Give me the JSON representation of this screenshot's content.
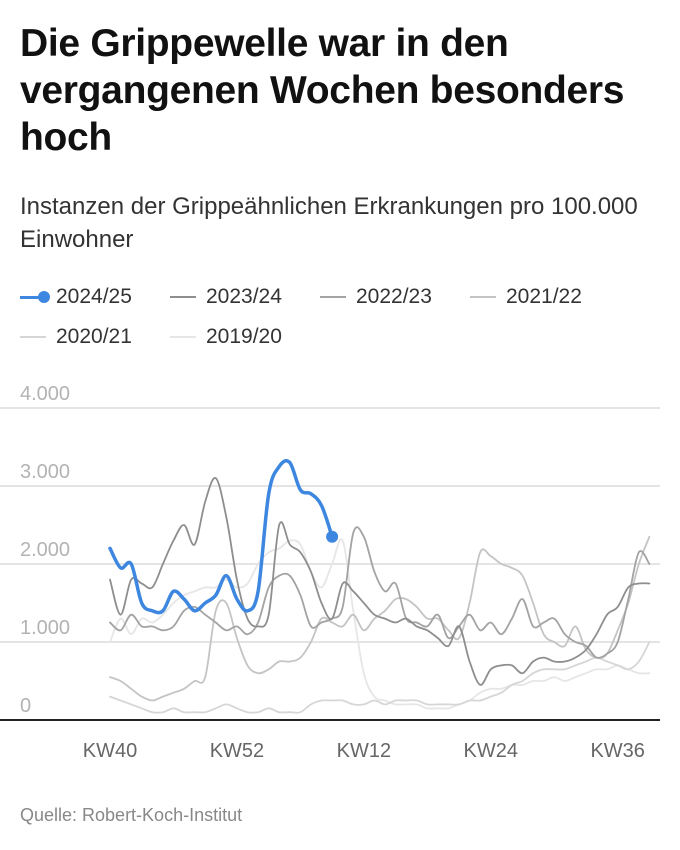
{
  "header": {
    "title": "Die Grippewelle war in den vergangenen Wochen besonders hoch",
    "subtitle": "Instanzen der Grippeähnlichen Erkrankungen pro 100.000 Einwohner"
  },
  "source": "Quelle: Robert-Koch-Institut",
  "chart_data": {
    "type": "line",
    "title": "Die Grippewelle war in den vergangenen Wochen besonders hoch",
    "subtitle": "Instanzen der Grippeähnlichen Erkrankungen pro 100.000 Einwohner",
    "xlabel": "",
    "ylabel": "",
    "x_ticks": [
      {
        "label": "KW40",
        "index": 0
      },
      {
        "label": "KW52",
        "index": 12
      },
      {
        "label": "KW12",
        "index": 24
      },
      {
        "label": "KW24",
        "index": 36
      },
      {
        "label": "KW36",
        "index": 48
      }
    ],
    "y_ticks": [
      {
        "value": 0,
        "label": "0"
      },
      {
        "value": 1000,
        "label": "1.000"
      },
      {
        "value": 2000,
        "label": "2.000"
      },
      {
        "value": 3000,
        "label": "3.000"
      },
      {
        "value": 4000,
        "label": "4.000"
      }
    ],
    "ylim": [
      0,
      4000
    ],
    "xlim": [
      0,
      52
    ],
    "grid": true,
    "legend_position": "top",
    "series": [
      {
        "name": "2024/25",
        "color": "#3d87e0",
        "highlight": true,
        "values": [
          2200,
          1950,
          2000,
          1500,
          1400,
          1400,
          1650,
          1550,
          1400,
          1500,
          1600,
          1850,
          1550,
          1400,
          1650,
          2900,
          3250,
          3300,
          2950,
          2900,
          2750,
          2350
        ]
      },
      {
        "name": "2023/24",
        "color": "#8e8e8e",
        "values": [
          1800,
          1350,
          1800,
          1750,
          1700,
          2000,
          2300,
          2500,
          2250,
          2800,
          3100,
          2600,
          1800,
          1300,
          1200,
          1350,
          2500,
          2250,
          2150,
          1900,
          1500,
          1300,
          1750,
          1650,
          1500,
          1350,
          1300,
          1250,
          1300,
          1200,
          1150,
          1050,
          950,
          1200,
          750,
          450,
          650,
          700,
          700,
          600,
          750,
          800,
          750,
          750,
          800,
          900,
          1100,
          1350,
          1450,
          1700,
          1750,
          1750
        ]
      },
      {
        "name": "2022/23",
        "color": "#a3a3a3",
        "values": [
          1250,
          1150,
          1350,
          1200,
          1200,
          1150,
          1200,
          1400,
          1450,
          1350,
          1250,
          1150,
          1200,
          1100,
          1250,
          1700,
          1850,
          1850,
          1600,
          1200,
          1250,
          1300,
          1450,
          2400,
          2350,
          1900,
          1650,
          1750,
          1300,
          1250,
          1200,
          1350,
          1050,
          1200,
          1350,
          1150,
          1250,
          1100,
          1300,
          1550,
          1200,
          1250,
          1300,
          1100,
          1000,
          950,
          800,
          850,
          1000,
          1550,
          2150,
          2000
        ]
      },
      {
        "name": "2021/22",
        "color": "#c4c4c4",
        "values": [
          550,
          500,
          400,
          300,
          250,
          300,
          350,
          400,
          500,
          550,
          1400,
          1500,
          1050,
          700,
          600,
          650,
          750,
          750,
          800,
          1000,
          1300,
          1250,
          1200,
          1350,
          1150,
          1300,
          1400,
          1550,
          1550,
          1450,
          1300,
          1300,
          1150,
          1050,
          1500,
          2150,
          2100,
          2000,
          1950,
          1850,
          1500,
          1100,
          1000,
          950,
          1200,
          900,
          800,
          850,
          1150,
          1500,
          2000,
          2350
        ]
      },
      {
        "name": "2020/21",
        "color": "#d6d6d6",
        "values": [
          300,
          250,
          200,
          150,
          100,
          100,
          150,
          100,
          100,
          100,
          150,
          200,
          150,
          100,
          100,
          150,
          100,
          100,
          100,
          200,
          250,
          250,
          250,
          200,
          200,
          250,
          200,
          250,
          250,
          250,
          200,
          200,
          200,
          200,
          250,
          250,
          300,
          350,
          450,
          500,
          600,
          650,
          650,
          650,
          700,
          750,
          800,
          750,
          700,
          650,
          750,
          1000
        ]
      },
      {
        "name": "2019/20",
        "color": "#e6e6e6",
        "values": [
          1000,
          1300,
          1100,
          1300,
          1250,
          1350,
          1500,
          1600,
          1650,
          1700,
          1700,
          1800,
          1700,
          1750,
          2000,
          2150,
          2200,
          2300,
          2250,
          1900,
          1700,
          2000,
          2300,
          1400,
          600,
          300,
          250,
          200,
          200,
          200,
          150,
          150,
          150,
          200,
          250,
          350,
          400,
          400,
          450,
          450,
          500,
          500,
          550,
          500,
          550,
          600,
          650,
          650,
          700,
          650,
          600,
          600
        ]
      }
    ]
  }
}
